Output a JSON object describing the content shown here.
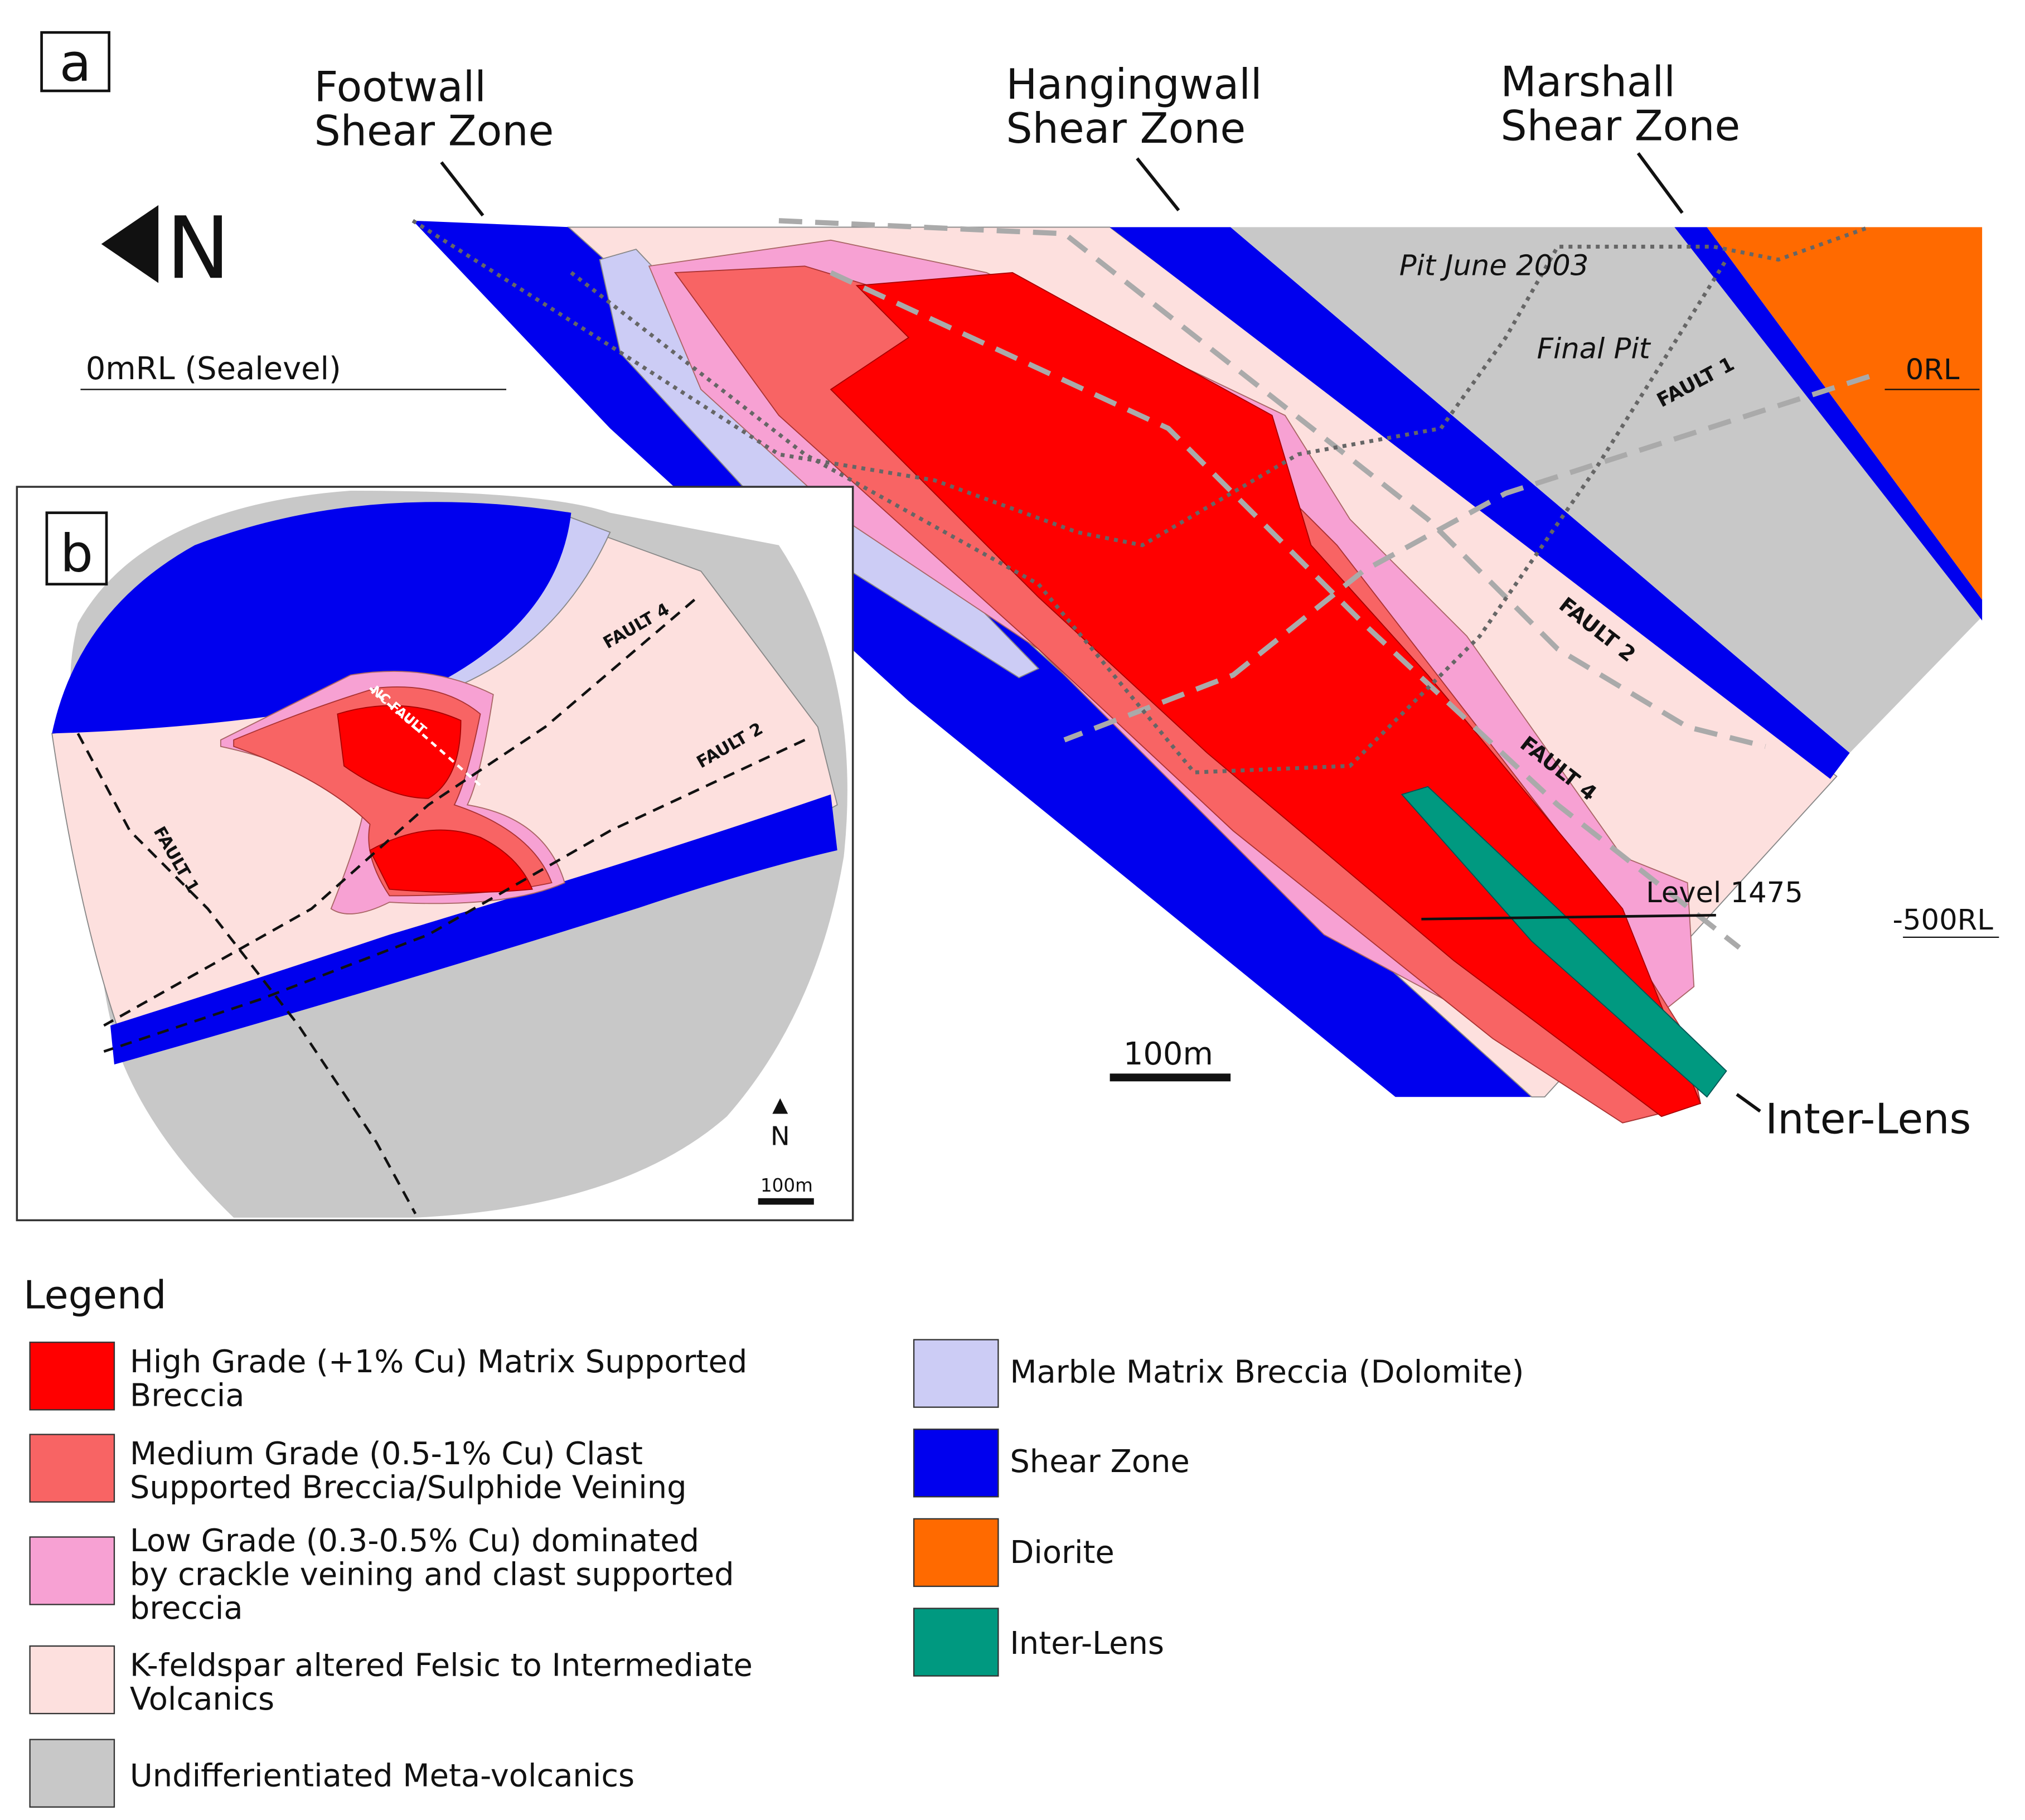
{
  "panel_a": {
    "label": "a",
    "north": "N",
    "shear_zones": [
      [
        "Footwall",
        "Shear Zone"
      ],
      [
        "Hangingwall",
        "Shear Zone"
      ],
      [
        "Marshall",
        "Shear Zone"
      ]
    ],
    "sealevel": "0mRL (Sealevel)",
    "rl_top": "0RL",
    "rl_bottom": "-500RL",
    "pits": [
      "Pit June 2003",
      "Final Pit"
    ],
    "faults": [
      "FAULT 1",
      "FAULT 2",
      "FAULT 4"
    ],
    "level": "Level 1475",
    "scale": "100m",
    "inter_lens": "Inter-Lens"
  },
  "panel_b": {
    "label": "b",
    "faults": [
      "FAULT 4",
      "FAULT 2",
      "FAULT 1",
      "NC FAULT"
    ],
    "north": "N",
    "scale": "100m"
  },
  "legend": {
    "title": "Legend",
    "items": [
      [
        "High Grade (+1% Cu) Matrix Supported",
        "Breccia"
      ],
      [
        "Medium Grade (0.5-1% Cu) Clast",
        "Supported Breccia/Sulphide Veining"
      ],
      [
        "Low Grade (0.3-0.5% Cu) dominated",
        "by crackle veining and clast supported",
        "breccia"
      ],
      [
        "K-feldspar altered Felsic to Intermediate",
        "Volcanics"
      ],
      [
        "Undifferientiated Meta-volcanics"
      ],
      [
        "Marble Matrix Breccia (Dolomite)"
      ],
      [
        "Shear Zone"
      ],
      [
        "Diorite"
      ],
      [
        "Inter-Lens"
      ]
    ]
  }
}
